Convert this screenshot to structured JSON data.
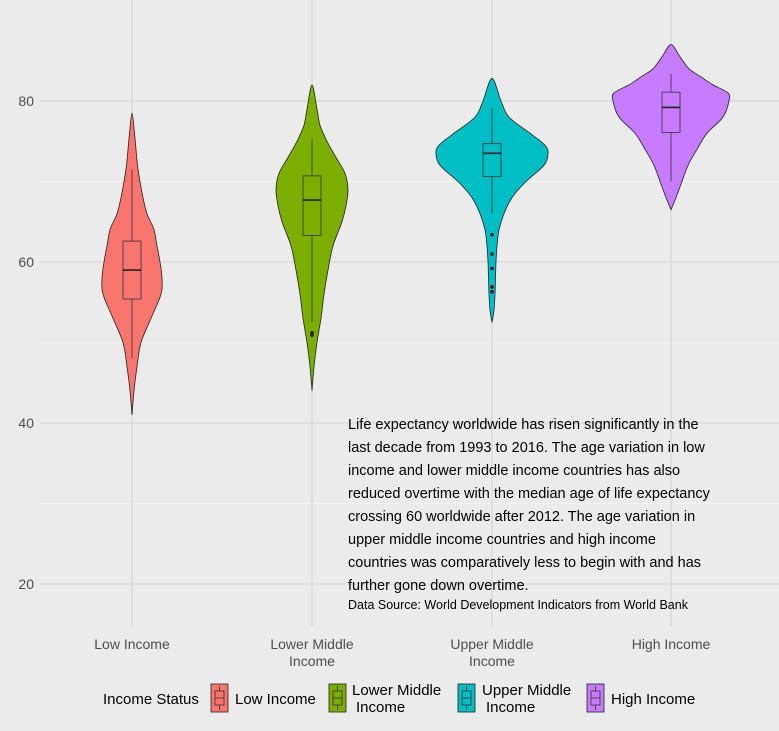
{
  "chart_data": {
    "type": "violin",
    "title": "",
    "xlabel": "",
    "ylabel": "",
    "ylim": [
      14,
      89
    ],
    "yticks": [
      20,
      40,
      60,
      80
    ],
    "grid": true,
    "categories": [
      "Low Income",
      "Lower Middle\nIncome",
      "Upper Middle\nIncome",
      "High Income"
    ],
    "series": [
      {
        "name": "Low Income",
        "color": "#f8766d",
        "violin_range": [
          41,
          78.5
        ],
        "box": {
          "min": 48,
          "q1": 55.4,
          "median": 59,
          "q3": 62.6,
          "max": 71.5
        },
        "outliers": []
      },
      {
        "name": "Lower Middle\nIncome",
        "color": "#7cae00",
        "violin_range": [
          44,
          82
        ],
        "box": {
          "min": 52.5,
          "q1": 63.3,
          "median": 67.7,
          "q3": 70.7,
          "max": 75.3
        },
        "outliers": [
          50.9,
          51.2
        ]
      },
      {
        "name": "Upper Middle\nIncome",
        "color": "#00bfc4",
        "violin_range": [
          52.5,
          82.8
        ],
        "box": {
          "min": 66,
          "q1": 70.6,
          "median": 73.5,
          "q3": 74.7,
          "max": 79.1
        },
        "outliers": [
          63.4,
          61,
          59.2,
          56.9,
          56.3
        ]
      },
      {
        "name": "High Income",
        "color": "#c77cff",
        "violin_range": [
          66.5,
          87
        ],
        "box": {
          "min": 70,
          "q1": 76.1,
          "median": 79.2,
          "q3": 81.1,
          "max": 83.4
        },
        "outliers": []
      }
    ],
    "annotation_lines": [
      "Life expectancy worldwide has risen significantly in the",
      "last decade from 1993 to 2016. The age variation in low",
      "income and lower middle income countries has also",
      "reduced overtime with the median age of life expectancy",
      "crossing 60 worldwide after 2012. The age variation in",
      "upper middle income countries and high income",
      "countries was comparatively less to begin with and has",
      "further gone down overtime."
    ],
    "source": "Data Source: World Development Indicators from World Bank",
    "legend": {
      "title": "Income Status",
      "position": "bottom",
      "items": [
        "Low Income",
        "Lower Middle\nIncome",
        "Upper Middle\nIncome",
        "High Income"
      ]
    }
  }
}
